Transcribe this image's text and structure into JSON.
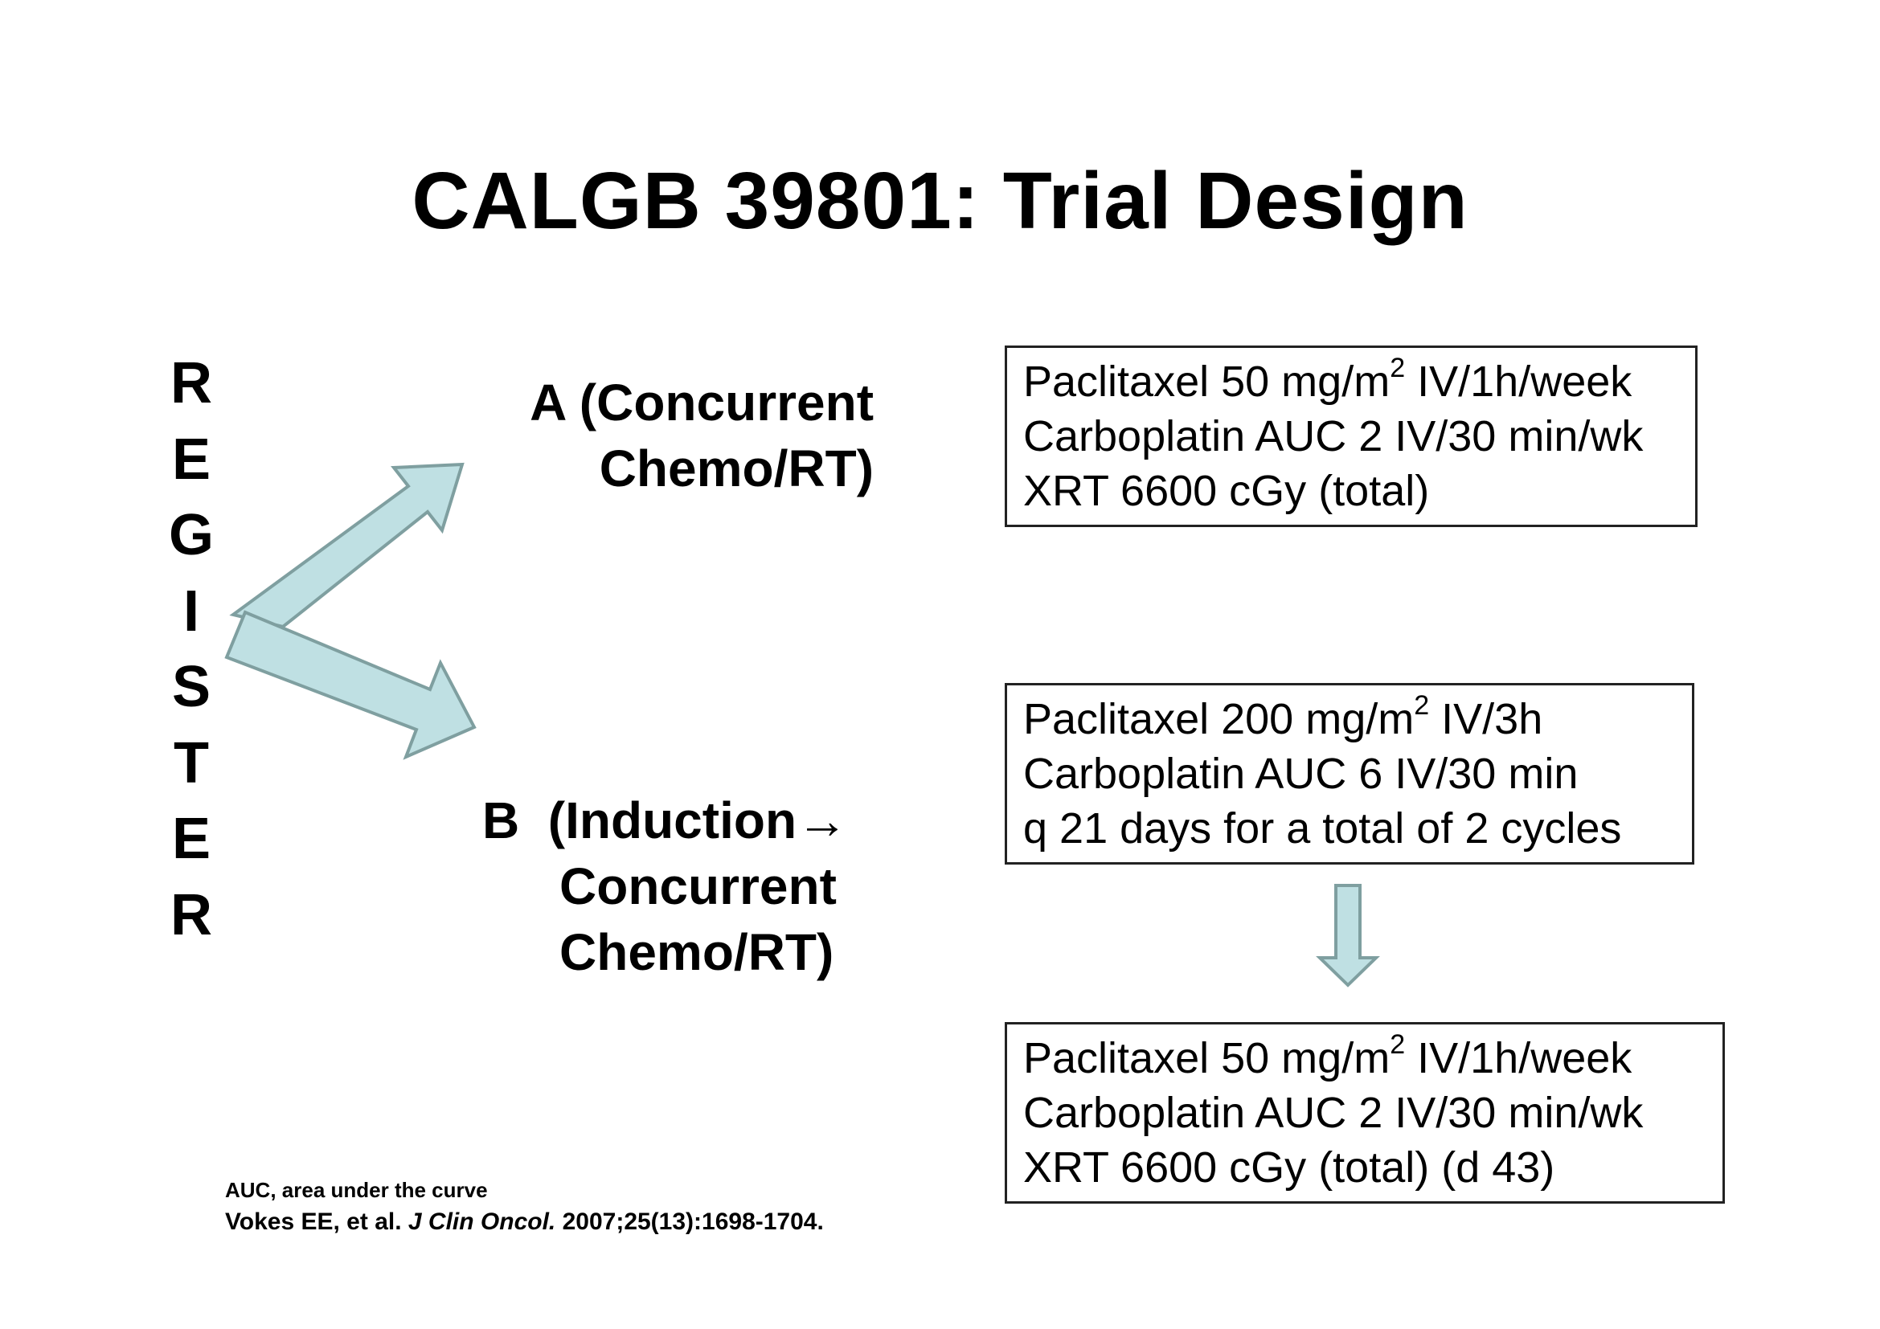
{
  "title": "CALGB 39801: Trial Design",
  "register_letters": [
    "R",
    "E",
    "G",
    "I",
    "S",
    "T",
    "E",
    "R"
  ],
  "arm_a": {
    "line1": "A (Concurrent",
    "line2": "Chemo/RT)"
  },
  "arm_b": {
    "line1_letter": "B",
    "line1_text": "(Induction",
    "arrow_glyph": "→",
    "line2": "Concurrent",
    "line3": "Chemo/RT)"
  },
  "box_a": {
    "l1_pre": "Paclitaxel 50 mg/m",
    "l1_sup": "2",
    "l1_post": " IV/1h/week",
    "l2": "Carboplatin AUC 2 IV/30 min/wk",
    "l3": "XRT 6600 cGy (total)"
  },
  "box_b1": {
    "l1_pre": "Paclitaxel 200 mg/m",
    "l1_sup": "2",
    "l1_post": " IV/3h",
    "l2": "Carboplatin AUC 6 IV/30 min",
    "l3": "q 21 days for a total of 2 cycles"
  },
  "box_b2": {
    "l1_pre": "Paclitaxel 50 mg/m",
    "l1_sup": "2",
    "l1_post": " IV/1h/week",
    "l2": "Carboplatin AUC 2 IV/30 min/wk",
    "l3": "XRT 6600 cGy (total) (d 43)"
  },
  "footnotes": {
    "abbrev": "AUC, area under the curve",
    "ref_authors": "Vokes EE, et al. ",
    "ref_journal": "J Clin Oncol.",
    "ref_details": " 2007;25(13):1698-1704."
  },
  "colors": {
    "arrow_fill": "#bfe0e3",
    "arrow_stroke": "#7f9fa0"
  }
}
